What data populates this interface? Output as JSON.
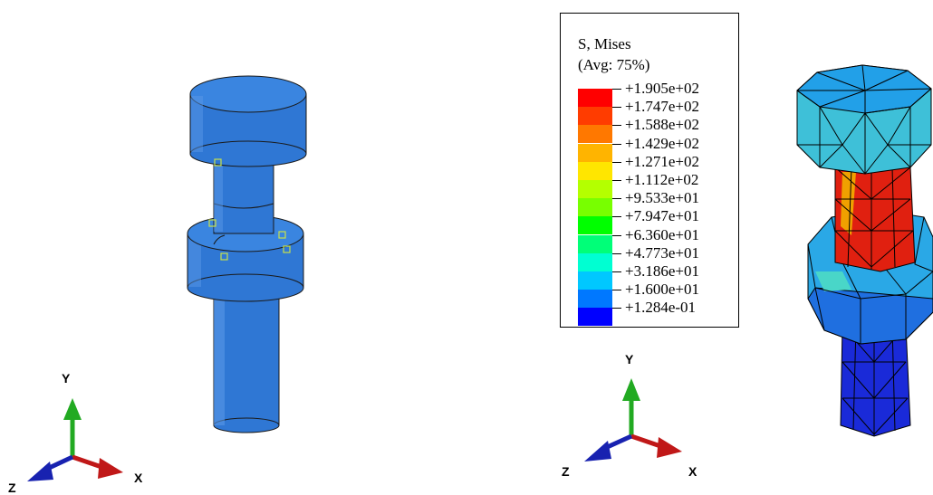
{
  "left_view": {
    "triad": {
      "y_label": "Y",
      "x_label": "X",
      "z_label": "Z"
    }
  },
  "right_view": {
    "triad": {
      "y_label": "Y",
      "x_label": "X",
      "z_label": "Z"
    },
    "legend": {
      "title_line1": "S, Mises",
      "title_line2": "(Avg: 75%)",
      "entries": [
        {
          "label": "+1.905e+02",
          "color": "#ff0000"
        },
        {
          "label": "+1.747e+02",
          "color": "#ff3c00"
        },
        {
          "label": "+1.588e+02",
          "color": "#ff7800"
        },
        {
          "label": "+1.429e+02",
          "color": "#ffb400"
        },
        {
          "label": "+1.271e+02",
          "color": "#ffe600"
        },
        {
          "label": "+1.112e+02",
          "color": "#b4ff00"
        },
        {
          "label": "+9.533e+01",
          "color": "#78ff00"
        },
        {
          "label": "+7.947e+01",
          "color": "#00ff00"
        },
        {
          "label": "+6.360e+01",
          "color": "#00ff78"
        },
        {
          "label": "+4.773e+01",
          "color": "#00ffd2"
        },
        {
          "label": "+3.186e+01",
          "color": "#00c8ff"
        },
        {
          "label": "+1.600e+01",
          "color": "#0078ff"
        },
        {
          "label": "+1.284e-01",
          "color": "#0000ff"
        }
      ]
    }
  },
  "colors": {
    "part_blue": "#2f77d4",
    "axis_green": "#22aa22",
    "axis_red": "#c01818",
    "axis_blue": "#1822b0"
  }
}
